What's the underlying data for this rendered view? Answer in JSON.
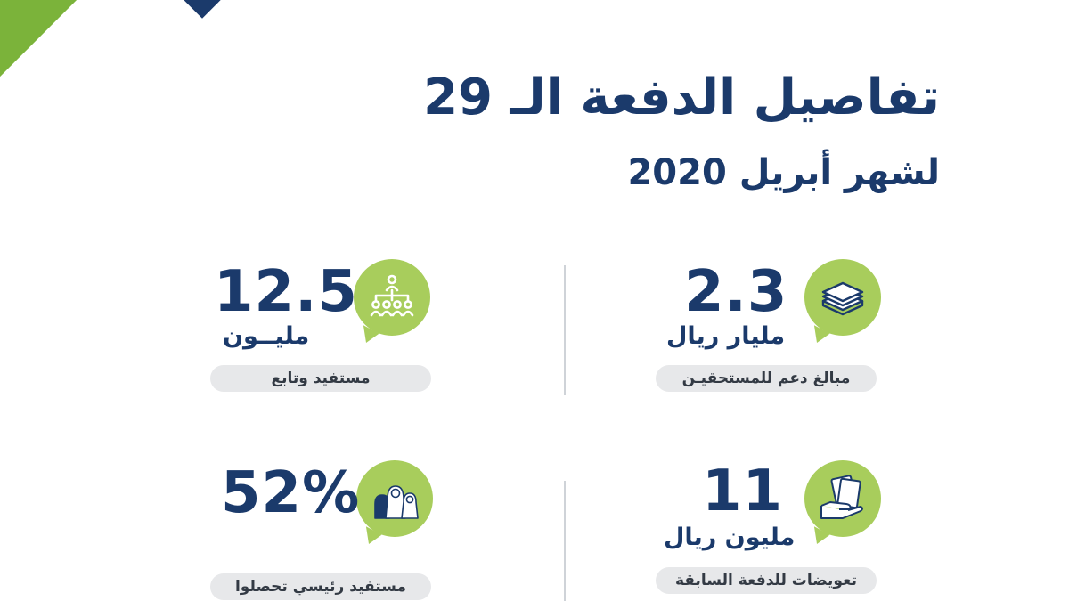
{
  "header": {
    "title": "تفاصيل الدفعة الـ 29",
    "subtitle": "لشهر أبريل 2020"
  },
  "stats": [
    {
      "value": "2.3",
      "unit": "مليار ريال",
      "label": "مبالغ دعم للمستحقيـن",
      "icon": "money-stack-icon"
    },
    {
      "value": "12.5",
      "unit": "مليــون",
      "label": "مستفيد وتابع",
      "icon": "family-tree-icon"
    },
    {
      "value": "11",
      "unit": "مليون ريال",
      "label": "تعويضات للدفعة السابقة",
      "icon": "hand-cash-icon"
    },
    {
      "value": "52%",
      "unit": "",
      "label": "مستفيد رئيسي تحصلوا",
      "icon": "people-group-icon"
    }
  ],
  "colors": {
    "navy": "#1b3a6b",
    "green": "#7bb33a",
    "bubble": "#a8cd5c",
    "pill": "#e7e8ea"
  }
}
